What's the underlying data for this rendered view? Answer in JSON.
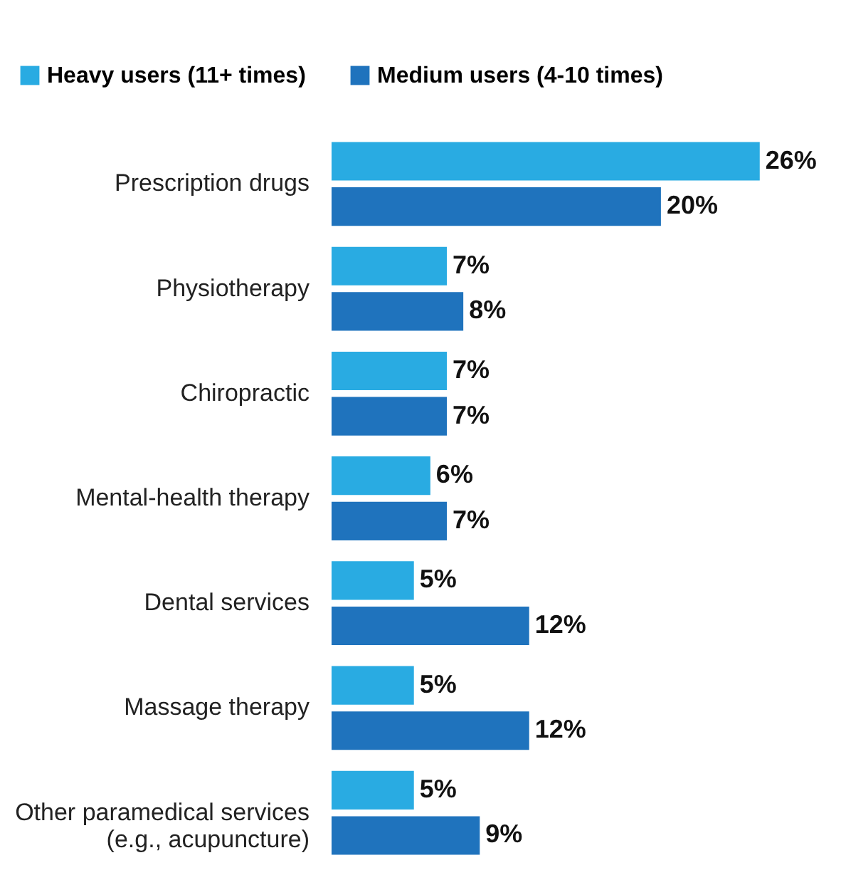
{
  "chart_data": {
    "type": "bar",
    "orientation": "horizontal",
    "categories": [
      "Prescription drugs",
      "Physiotherapy",
      "Chiropractic",
      "Mental-health therapy",
      "Dental services",
      "Massage therapy",
      "Other paramedical services (e.g., acupuncture)"
    ],
    "series": [
      {
        "name": "Heavy users (11+ times)",
        "color": "#29abe2",
        "values": [
          26,
          7,
          7,
          6,
          5,
          5,
          5
        ],
        "value_labels": [
          "26%",
          "7%",
          "7%",
          "6%",
          "5%",
          "5%",
          "5%"
        ]
      },
      {
        "name": "Medium users (4-10 times)",
        "color": "#1f73bd",
        "values": [
          20,
          8,
          7,
          7,
          12,
          12,
          9
        ],
        "value_labels": [
          "20%",
          "8%",
          "7%",
          "7%",
          "12%",
          "12%",
          "9%"
        ]
      }
    ],
    "legend": "top left",
    "grid": false
  }
}
